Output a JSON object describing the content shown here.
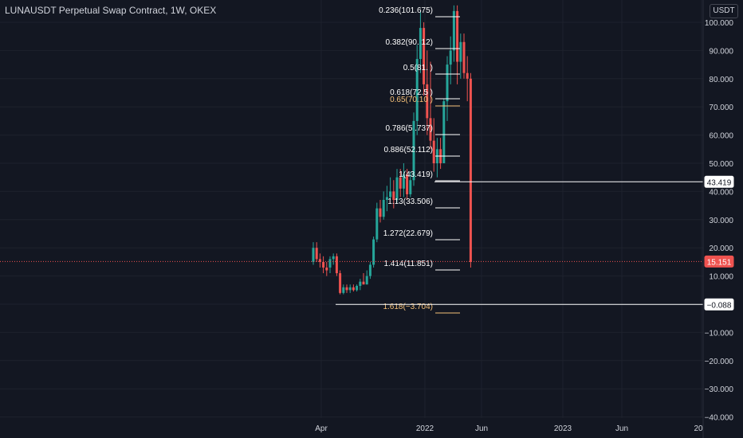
{
  "header": {
    "title": "LUNAUSDT Perpetual Swap Contract, 1W, OKEX"
  },
  "price_axis": {
    "unit": "USDT",
    "ticks": [
      "100.000",
      "90.000",
      "80.000",
      "70.000",
      "60.000",
      "50.000",
      "40.000",
      "30.000",
      "20.000",
      "10.000",
      "0.000",
      "−10.000",
      "−20.000",
      "−30.000",
      "−40.000"
    ]
  },
  "time_axis": {
    "ticks": [
      "Apr",
      "2022",
      "Jun",
      "2023",
      "Jun",
      "20"
    ]
  },
  "colors": {
    "background": "#131722",
    "up": "#26a69a",
    "down": "#ef5350",
    "grid": "#1e222d",
    "fib_white": "#ffffff",
    "fib_orange": "#f6c178",
    "current_price": "#ef5350"
  },
  "price_tags": {
    "level_a": "43.419",
    "current": "15.151",
    "level_b": "−0.088"
  },
  "chart_data": {
    "type": "candlestick",
    "title": "LUNAUSDT Perpetual Swap Contract, 1W, OKEX",
    "xlabel": "",
    "ylabel": "USDT",
    "ylim": [
      -40,
      106
    ],
    "grid": true,
    "x_ticks": [
      "Apr",
      "2022",
      "Jun",
      "2023",
      "Jun",
      "20"
    ],
    "y_ticks": [
      100,
      90,
      80,
      70,
      60,
      50,
      40,
      30,
      20,
      10,
      0,
      -10,
      -20,
      -30,
      -40
    ],
    "current_price": 15.151,
    "horizontal_levels": [
      43.419,
      -0.088
    ],
    "fibonacci": [
      {
        "ratio": "0.236",
        "price": "101.675",
        "label": "0.236(101.675)",
        "color": "white"
      },
      {
        "ratio": "0.382",
        "price": "90.?12",
        "label": "0.382(90.  12)",
        "color": "white"
      },
      {
        "ratio": "0.5",
        "price": "81.?",
        "label": "0.5(81.   )",
        "color": "white"
      },
      {
        "ratio": "0.618",
        "price": "72.?",
        "label": "0.618(72.5  )",
        "color": "white"
      },
      {
        "ratio": "0.65",
        "price": "70.1?",
        "label": "0.65(70.10 )",
        "color": "orange"
      },
      {
        "ratio": "0.786",
        "price": "5?.737",
        "label": "0.786(5  .737)",
        "color": "white"
      },
      {
        "ratio": "0.886",
        "price": "52.112",
        "label": "0.886(52.112)",
        "color": "white"
      },
      {
        "ratio": "1",
        "price": "43.419",
        "label": "1(43.419)",
        "color": "white"
      },
      {
        "ratio": "1.13",
        "price": "33.506",
        "label": "1.13(33.506)",
        "color": "white"
      },
      {
        "ratio": "1.272",
        "price": "22.679",
        "label": "1.272(22.679)",
        "color": "white"
      },
      {
        "ratio": "1.414",
        "price": "11.851",
        "label": "1.414(11.851)",
        "color": "white"
      },
      {
        "ratio": "1.618",
        "price": "−3.704",
        "label": "1.618(−3.704)",
        "color": "orange"
      }
    ],
    "candles": [
      {
        "o": 15,
        "h": 22,
        "l": 14,
        "c": 20
      },
      {
        "o": 20,
        "h": 22,
        "l": 15,
        "c": 16
      },
      {
        "o": 16,
        "h": 18,
        "l": 13,
        "c": 15
      },
      {
        "o": 15,
        "h": 17,
        "l": 11,
        "c": 13
      },
      {
        "o": 13,
        "h": 15,
        "l": 10,
        "c": 12
      },
      {
        "o": 13,
        "h": 17,
        "l": 11,
        "c": 16
      },
      {
        "o": 16,
        "h": 18,
        "l": 14,
        "c": 17
      },
      {
        "o": 17,
        "h": 18,
        "l": 10,
        "c": 11
      },
      {
        "o": 11,
        "h": 12,
        "l": 3.5,
        "c": 4
      },
      {
        "o": 4,
        "h": 7,
        "l": 3.5,
        "c": 6
      },
      {
        "o": 6,
        "h": 7,
        "l": 4,
        "c": 5
      },
      {
        "o": 5,
        "h": 7,
        "l": 4,
        "c": 6
      },
      {
        "o": 6,
        "h": 7,
        "l": 4.5,
        "c": 5
      },
      {
        "o": 5,
        "h": 7,
        "l": 4.5,
        "c": 6.5
      },
      {
        "o": 6.5,
        "h": 9,
        "l": 5,
        "c": 8
      },
      {
        "o": 8,
        "h": 11,
        "l": 7,
        "c": 7
      },
      {
        "o": 7,
        "h": 12,
        "l": 7,
        "c": 10
      },
      {
        "o": 10,
        "h": 15,
        "l": 9,
        "c": 14
      },
      {
        "o": 14,
        "h": 24,
        "l": 13,
        "c": 23
      },
      {
        "o": 23,
        "h": 36,
        "l": 22,
        "c": 34
      },
      {
        "o": 34,
        "h": 37,
        "l": 29,
        "c": 31
      },
      {
        "o": 31,
        "h": 40,
        "l": 30,
        "c": 37
      },
      {
        "o": 37,
        "h": 42,
        "l": 33,
        "c": 38
      },
      {
        "o": 38,
        "h": 45,
        "l": 37,
        "c": 40
      },
      {
        "o": 40,
        "h": 44,
        "l": 34,
        "c": 37
      },
      {
        "o": 37,
        "h": 48,
        "l": 36,
        "c": 45
      },
      {
        "o": 45,
        "h": 48,
        "l": 38,
        "c": 41
      },
      {
        "o": 41,
        "h": 50,
        "l": 38,
        "c": 46
      },
      {
        "o": 46,
        "h": 48,
        "l": 37,
        "c": 39
      },
      {
        "o": 39,
        "h": 47,
        "l": 38,
        "c": 44
      },
      {
        "o": 44,
        "h": 68,
        "l": 42,
        "c": 65
      },
      {
        "o": 65,
        "h": 92,
        "l": 60,
        "c": 87
      },
      {
        "o": 87,
        "h": 104,
        "l": 82,
        "c": 98
      },
      {
        "o": 98,
        "h": 100,
        "l": 74,
        "c": 78
      },
      {
        "o": 78,
        "h": 90,
        "l": 60,
        "c": 66
      },
      {
        "o": 66,
        "h": 86,
        "l": 55,
        "c": 58
      },
      {
        "o": 58,
        "h": 66,
        "l": 47,
        "c": 50
      },
      {
        "o": 50,
        "h": 59,
        "l": 45,
        "c": 55
      },
      {
        "o": 55,
        "h": 59,
        "l": 48,
        "c": 50
      },
      {
        "o": 50,
        "h": 73,
        "l": 50,
        "c": 72
      },
      {
        "o": 72,
        "h": 88,
        "l": 65,
        "c": 85
      },
      {
        "o": 85,
        "h": 95,
        "l": 78,
        "c": 90
      },
      {
        "o": 90,
        "h": 106,
        "l": 86,
        "c": 104
      },
      {
        "o": 104,
        "h": 106,
        "l": 78,
        "c": 86
      },
      {
        "o": 86,
        "h": 96,
        "l": 80,
        "c": 93
      },
      {
        "o": 93,
        "h": 96,
        "l": 80,
        "c": 82
      },
      {
        "o": 82,
        "h": 88,
        "l": 72,
        "c": 80
      },
      {
        "o": 80,
        "h": 82,
        "l": 13,
        "c": 15
      }
    ]
  }
}
